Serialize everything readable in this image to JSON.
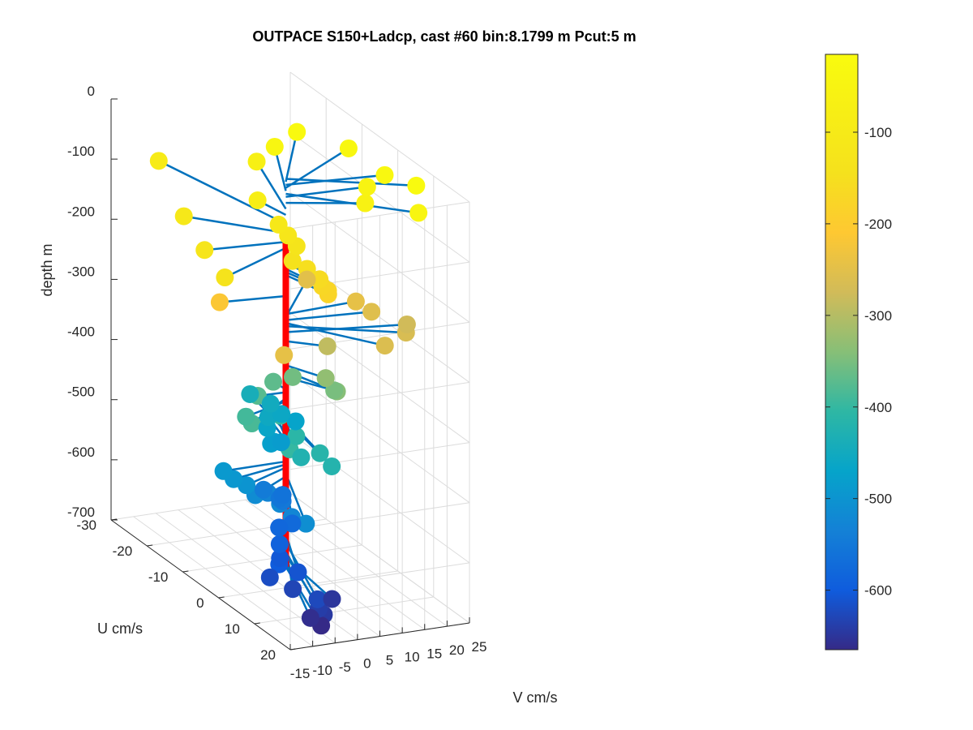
{
  "chart_data": {
    "type": "scatter3d",
    "title": "OUTPACE S150+Ladcp, cast #60 bin:8.1799 m  Pcut:5 m",
    "xlabel": "V cm/s",
    "ylabel": "U cm/s",
    "zlabel": "depth m",
    "xlim": [
      -15,
      25
    ],
    "ylim": [
      -30,
      20
    ],
    "zlim": [
      -700,
      0
    ],
    "xticks": [
      "-15",
      "-10",
      "-5",
      "0",
      "5",
      "10",
      "15",
      "20",
      "25"
    ],
    "yticks": [
      "-30",
      "-20",
      "-10",
      "0",
      "10",
      "20"
    ],
    "zticks": [
      "0",
      "-100",
      "-200",
      "-300",
      "-400",
      "-500",
      "-600",
      "-700"
    ],
    "grid": true,
    "colorbar": {
      "colormap": "parula",
      "range": [
        -665,
        -15
      ],
      "ticks": [
        "-100",
        "-200",
        "-300",
        "-400",
        "-500",
        "-600"
      ],
      "tick_values": [
        -100,
        -200,
        -300,
        -400,
        -500,
        -600
      ]
    },
    "profile_line_color": "#ff0000",
    "vector_color": "#0072bd",
    "points": [
      {
        "depth": -20,
        "v": 22.4,
        "u": 8.4
      },
      {
        "depth": -25,
        "v": 14.8,
        "u": -15.4
      },
      {
        "depth": -30,
        "v": 20.8,
        "u": 1.6
      },
      {
        "depth": -35,
        "v": 21.7,
        "u": -9.6
      },
      {
        "depth": -40,
        "v": 9.2,
        "u": -14.6
      },
      {
        "depth": -45,
        "v": 19.7,
        "u": 12.4
      },
      {
        "depth": -50,
        "v": 17.6,
        "u": 0.7
      },
      {
        "depth": -60,
        "v": 14.6,
        "u": 3.9
      },
      {
        "depth": -70,
        "v": 6.7,
        "u": -16.5
      },
      {
        "depth": -80,
        "v": -1.5,
        "u": -6.0
      },
      {
        "depth": -95,
        "v": -7.4,
        "u": -26.2
      },
      {
        "depth": -110,
        "v": 0.8,
        "u": -3.0
      },
      {
        "depth": -120,
        "v": 1.3,
        "u": -1.0
      },
      {
        "depth": -130,
        "v": 1.7,
        "u": 0.9
      },
      {
        "depth": -140,
        "v": -1.3,
        "u": 3.5
      },
      {
        "depth": -150,
        "v": 0.9,
        "u": 4.8
      },
      {
        "depth": -160,
        "v": 2.1,
        "u": 6.8
      },
      {
        "depth": -170,
        "v": 2.3,
        "u": 7.3
      },
      {
        "depth": -175,
        "v": 3.1,
        "u": 7.9
      },
      {
        "depth": -180,
        "v": 2.9,
        "u": 8.2
      },
      {
        "depth": -110,
        "v": -14.6,
        "u": -10.2
      },
      {
        "depth": -125,
        "v": -17.1,
        "u": -1.3
      },
      {
        "depth": -135,
        "v": -18.8,
        "u": 6.5
      },
      {
        "depth": -215,
        "v": -13.8,
        "u": -1.2
      },
      {
        "depth": -245,
        "v": -10.8,
        "u": 13.0
      },
      {
        "depth": -250,
        "v": 13.5,
        "u": -11.0
      },
      {
        "depth": -245,
        "v": 16.2,
        "u": -0.7
      },
      {
        "depth": -255,
        "v": 18.0,
        "u": 1.4
      },
      {
        "depth": -260,
        "v": 12.6,
        "u": 11.9
      },
      {
        "depth": -265,
        "v": 20.6,
        "u": 7.8
      },
      {
        "depth": -275,
        "v": 24.4,
        "u": 3.3
      },
      {
        "depth": -290,
        "v": 6.4,
        "u": 3.6
      },
      {
        "depth": -330,
        "v": 4.1,
        "u": 6.0
      },
      {
        "depth": -340,
        "v": 4.3,
        "u": 8.9
      },
      {
        "depth": -350,
        "v": 5.6,
        "u": 6.5
      },
      {
        "depth": -355,
        "v": 2.1,
        "u": -0.7
      },
      {
        "depth": -370,
        "v": -0.4,
        "u": -3.0
      },
      {
        "depth": -375,
        "v": -6.1,
        "u": -0.2
      },
      {
        "depth": -385,
        "v": -12.7,
        "u": 6.4
      },
      {
        "depth": -390,
        "v": -11.3,
        "u": 3.0
      },
      {
        "depth": -395,
        "v": -3.9,
        "u": 3.4
      },
      {
        "depth": -400,
        "v": -10.0,
        "u": 13.6
      },
      {
        "depth": -410,
        "v": -3.9,
        "u": 7.8
      },
      {
        "depth": -415,
        "v": -3.1,
        "u": 13.4
      },
      {
        "depth": -420,
        "v": -3.5,
        "u": 17.2
      },
      {
        "depth": -425,
        "v": -6.1,
        "u": 11.9
      },
      {
        "depth": -440,
        "v": 2.9,
        "u": -13.6
      },
      {
        "depth": -450,
        "v": 5.8,
        "u": -11.5
      },
      {
        "depth": -455,
        "v": 2.7,
        "u": -8.3
      },
      {
        "depth": -460,
        "v": 6.7,
        "u": -9.6
      },
      {
        "depth": -465,
        "v": 1.3,
        "u": -6.8
      },
      {
        "depth": -470,
        "v": 9.0,
        "u": -8.5
      },
      {
        "depth": -475,
        "v": -0.5,
        "u": -3.5
      },
      {
        "depth": -480,
        "v": 1.3,
        "u": -5.0
      },
      {
        "depth": -485,
        "v": 3.3,
        "u": -5.4
      },
      {
        "depth": -490,
        "v": -14.0,
        "u": 0.1
      },
      {
        "depth": -495,
        "v": -13.4,
        "u": 2.2
      },
      {
        "depth": -500,
        "v": -11.8,
        "u": 3.8
      },
      {
        "depth": -510,
        "v": -9.1,
        "u": 17.0
      },
      {
        "depth": -515,
        "v": -10.4,
        "u": 4.5
      },
      {
        "depth": -520,
        "v": -7.3,
        "u": 7.5
      },
      {
        "depth": -525,
        "v": -7.7,
        "u": 11.3
      },
      {
        "depth": -530,
        "v": -5.2,
        "u": 1.5
      },
      {
        "depth": -545,
        "v": -2.9,
        "u": -2.6
      },
      {
        "depth": -550,
        "v": -1.5,
        "u": 1.0
      },
      {
        "depth": -555,
        "v": -0.6,
        "u": -1.0
      },
      {
        "depth": -560,
        "v": 1.6,
        "u": -2.9
      },
      {
        "depth": -575,
        "v": -1.6,
        "u": 3.8
      },
      {
        "depth": -580,
        "v": -4.3,
        "u": 3.5
      },
      {
        "depth": -590,
        "v": -6.9,
        "u": 6.9
      },
      {
        "depth": -600,
        "v": -10.6,
        "u": 11.4
      },
      {
        "depth": -605,
        "v": -8.1,
        "u": 8.5
      },
      {
        "depth": -610,
        "v": -7.6,
        "u": 12.9
      },
      {
        "depth": -620,
        "v": -12.6,
        "u": 11.3
      },
      {
        "depth": -625,
        "v": -8.6,
        "u": 19.6
      },
      {
        "depth": -630,
        "v": -9.8,
        "u": 14.2
      },
      {
        "depth": -640,
        "v": -8.5,
        "u": 19.8
      },
      {
        "depth": -645,
        "v": -8.3,
        "u": 21.0
      },
      {
        "depth": -650,
        "v": -2.0,
        "u": 15.4
      },
      {
        "depth": -660,
        "v": -9.3,
        "u": 18.5
      },
      {
        "depth": -665,
        "v": -8.5,
        "u": 20.5
      }
    ]
  }
}
